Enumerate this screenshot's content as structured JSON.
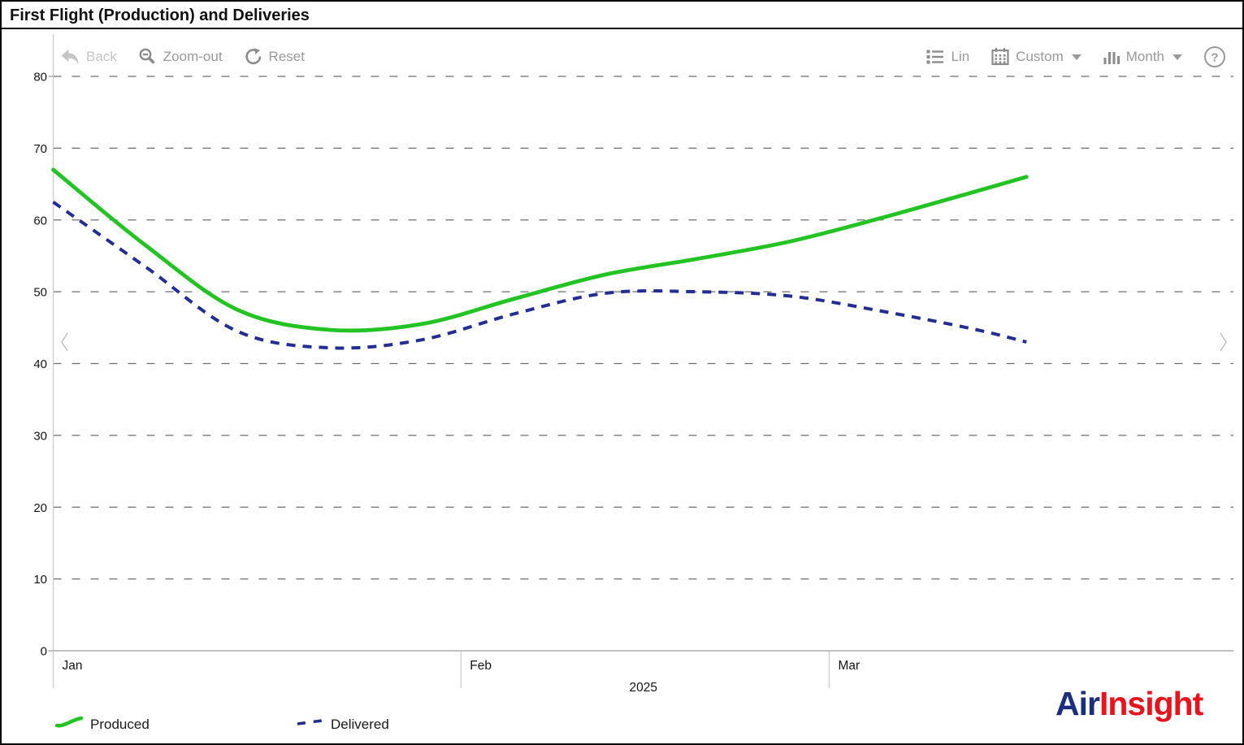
{
  "window": {
    "title": "First Flight (Production) and Deliveries"
  },
  "toolbar": {
    "back_label": "Back",
    "zoom_out_label": "Zoom-out",
    "reset_label": "Reset",
    "lin_label": "Lin",
    "custom_label": "Custom",
    "month_label": "Month",
    "help_label": "?"
  },
  "chart_data": {
    "type": "line",
    "title": "First Flight (Production) and Deliveries",
    "x_axis": {
      "type": "time",
      "start": "2025-01-01",
      "year_label": "2025",
      "month_labels": [
        "Jan",
        "Feb",
        "Mar"
      ]
    },
    "y_axis": {
      "min": 0,
      "max": 80,
      "step": 10
    },
    "grid": "dashed-horizontal",
    "legend_position": "bottom-left",
    "series": [
      {
        "name": "Produced",
        "color": "#22c322",
        "style": "solid",
        "dates": [
          "2025-01-01",
          "2025-01-08",
          "2025-01-15",
          "2025-01-22",
          "2025-01-29",
          "2025-02-05",
          "2025-02-12",
          "2025-02-19",
          "2025-02-26",
          "2025-03-05",
          "2025-03-12",
          "2025-03-16"
        ],
        "values": [
          67,
          56.5,
          47.5,
          44.7,
          45.5,
          49,
          52.4,
          54.6,
          57,
          60.3,
          63.9,
          66
        ]
      },
      {
        "name": "Delivered",
        "color": "#232e93",
        "style": "dashed",
        "dates": [
          "2025-01-01",
          "2025-01-08",
          "2025-01-15",
          "2025-01-22",
          "2025-01-29",
          "2025-02-05",
          "2025-02-12",
          "2025-02-19",
          "2025-02-26",
          "2025-03-05",
          "2025-03-12",
          "2025-03-16"
        ],
        "values": [
          62.5,
          53.5,
          44.5,
          42.2,
          43.3,
          46.9,
          49.8,
          50,
          49.4,
          47.3,
          44.8,
          43
        ]
      }
    ]
  },
  "legend": {
    "produced": "Produced",
    "delivered": "Delivered"
  },
  "logo": {
    "part1": "Air",
    "part2": "Insight",
    "color1": "#1b2f7e",
    "color2": "#e8131c"
  }
}
